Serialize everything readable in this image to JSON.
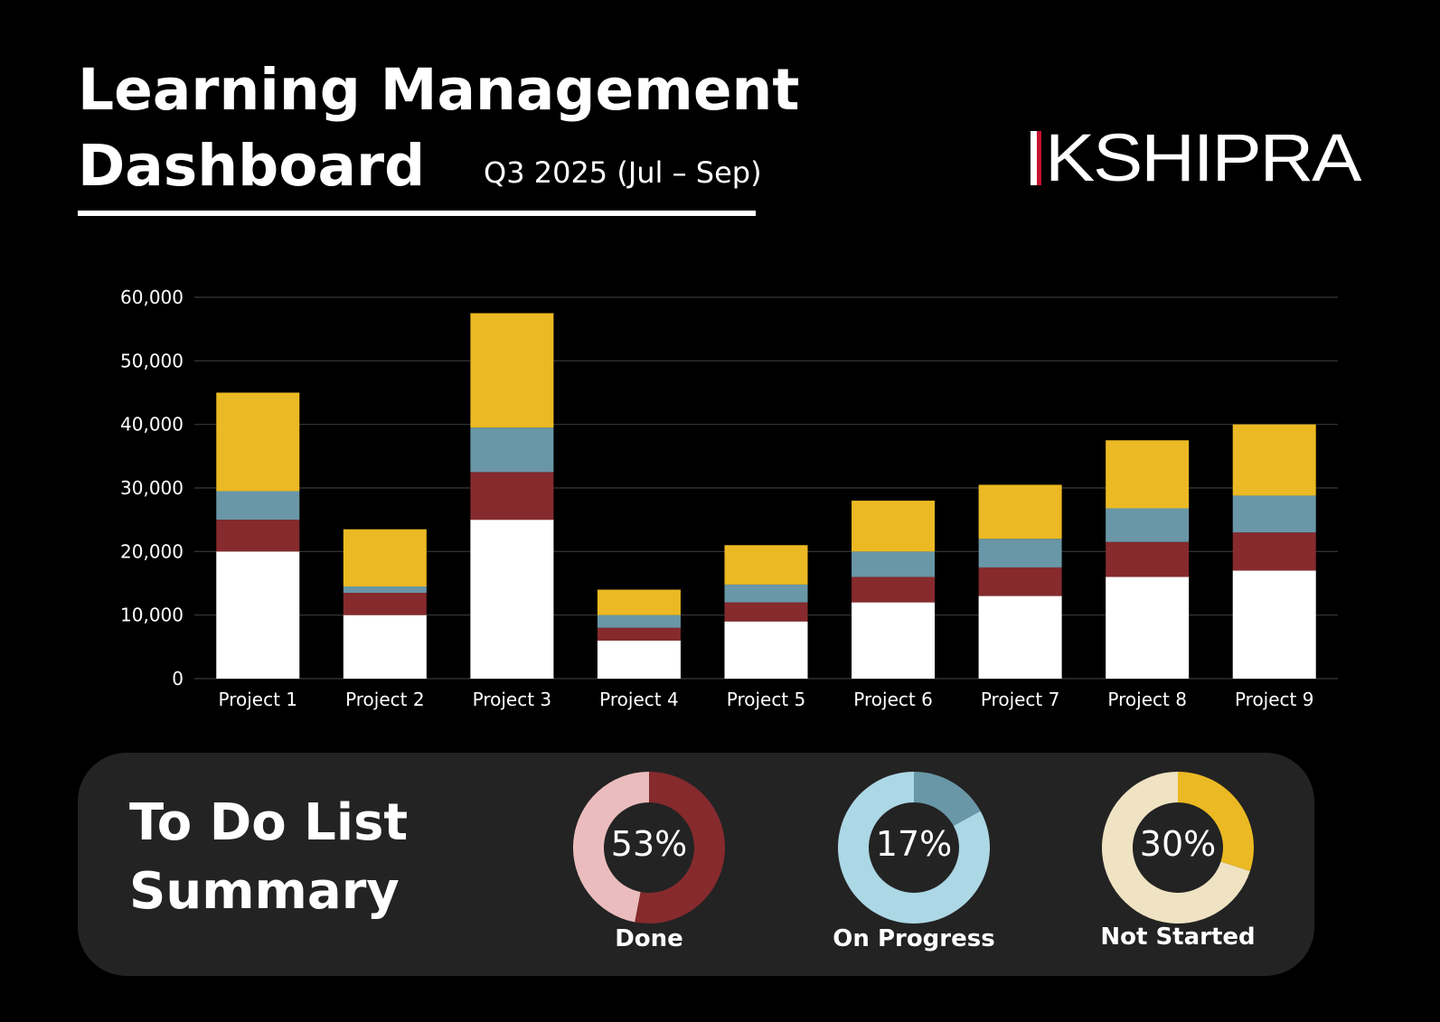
{
  "header": {
    "title_line1": "Learning Management",
    "title_line2": "Dashboard",
    "subtitle": "Q3 2025 (Jul – Sep)",
    "logo_text": "KSHIPRA"
  },
  "colors": {
    "background": "#000000",
    "panel": "#232323",
    "series_1": "#ffffff",
    "series_2": "#862a2d",
    "series_3": "#6997a7",
    "series_4": "#ebb923",
    "logo_accent": "#c8102e"
  },
  "chart_data": {
    "type": "bar",
    "stacked": true,
    "categories": [
      "Project 1",
      "Project 2",
      "Project 3",
      "Project 4",
      "Project 5",
      "Project 6",
      "Project 7",
      "Project 8",
      "Project 9"
    ],
    "series": [
      {
        "color": "#ffffff",
        "values": [
          20000,
          10000,
          25000,
          6000,
          9000,
          12000,
          13000,
          16000,
          17000
        ]
      },
      {
        "color": "#862a2d",
        "values": [
          5000,
          3500,
          7500,
          2000,
          3000,
          4000,
          4500,
          5500,
          6000
        ]
      },
      {
        "color": "#6997a7",
        "values": [
          4500,
          1000,
          7000,
          2000,
          2800,
          4000,
          4500,
          5300,
          5800
        ]
      },
      {
        "color": "#ebb923",
        "values": [
          15500,
          9000,
          18000,
          4000,
          6200,
          8000,
          8500,
          10700,
          11200
        ]
      }
    ],
    "ylim": [
      0,
      60000
    ],
    "yticks": [
      "0",
      "10,000",
      "20,000",
      "30,000",
      "40,000",
      "50,000",
      "60,000"
    ],
    "grid": true,
    "legend": "none"
  },
  "summary": {
    "title_line1": "To Do List",
    "title_line2": "Summary",
    "items": [
      {
        "label": "Done",
        "percent_text": "53%",
        "value": 53,
        "main_color": "#862a2d",
        "rest_color": "#ebbcbd"
      },
      {
        "label": "On Progress",
        "percent_text": "17%",
        "value": 17,
        "main_color": "#6997a7",
        "rest_color": "#acd7e5"
      },
      {
        "label": "Not Started",
        "percent_text": "30%",
        "value": 30,
        "main_color": "#ebb923",
        "rest_color": "#efe3c3"
      }
    ]
  }
}
